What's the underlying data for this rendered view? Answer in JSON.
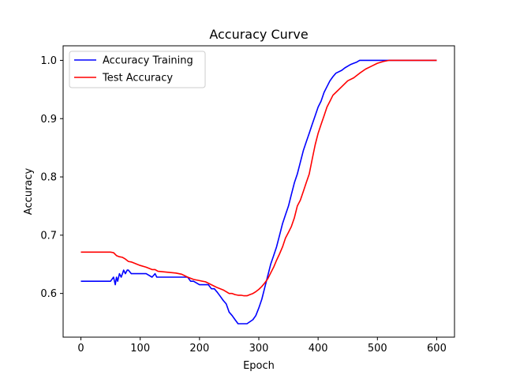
{
  "chart_data": {
    "type": "line",
    "title": "Accuracy Curve",
    "xlabel": "Epoch",
    "ylabel": "Accuracy",
    "xlim": [
      -30,
      630
    ],
    "ylim": [
      0.525,
      1.025
    ],
    "xticks": [
      0,
      100,
      200,
      300,
      400,
      500,
      600
    ],
    "yticks": [
      0.6,
      0.7,
      0.8,
      0.9,
      1.0
    ],
    "ytick_labels": [
      "0.6",
      "0.7",
      "0.8",
      "0.9",
      "1.0"
    ],
    "grid": false,
    "legend_position": "top-left",
    "series": [
      {
        "name": "Accuracy Training",
        "color": "#0000ff",
        "x": [
          0,
          50,
          55,
          58,
          60,
          62,
          65,
          68,
          70,
          72,
          75,
          78,
          80,
          85,
          95,
          100,
          110,
          120,
          125,
          128,
          130,
          140,
          160,
          175,
          180,
          185,
          190,
          200,
          210,
          215,
          220,
          225,
          230,
          235,
          240,
          245,
          250,
          255,
          260,
          265,
          270,
          280,
          290,
          295,
          300,
          305,
          310,
          315,
          320,
          325,
          330,
          335,
          340,
          345,
          350,
          355,
          360,
          365,
          370,
          375,
          380,
          385,
          390,
          395,
          400,
          405,
          410,
          415,
          420,
          425,
          430,
          440,
          445,
          450,
          455,
          460,
          465,
          470,
          480,
          490,
          500,
          510,
          520,
          540,
          560,
          580,
          600
        ],
        "y": [
          0.621,
          0.621,
          0.628,
          0.615,
          0.628,
          0.621,
          0.634,
          0.628,
          0.634,
          0.64,
          0.634,
          0.64,
          0.64,
          0.634,
          0.634,
          0.634,
          0.634,
          0.628,
          0.634,
          0.628,
          0.628,
          0.628,
          0.628,
          0.628,
          0.628,
          0.621,
          0.621,
          0.615,
          0.615,
          0.615,
          0.608,
          0.608,
          0.602,
          0.595,
          0.588,
          0.582,
          0.568,
          0.562,
          0.555,
          0.548,
          0.548,
          0.548,
          0.555,
          0.562,
          0.575,
          0.59,
          0.61,
          0.63,
          0.65,
          0.665,
          0.68,
          0.7,
          0.72,
          0.735,
          0.75,
          0.77,
          0.79,
          0.805,
          0.825,
          0.845,
          0.86,
          0.875,
          0.89,
          0.905,
          0.92,
          0.93,
          0.945,
          0.955,
          0.965,
          0.972,
          0.978,
          0.983,
          0.987,
          0.99,
          0.993,
          0.995,
          0.997,
          1.0,
          1.0,
          1.0,
          1.0,
          1.0,
          1.0,
          1.0,
          1.0,
          1.0,
          1.0
        ]
      },
      {
        "name": "Test Accuracy",
        "color": "#ff0000",
        "x": [
          0,
          50,
          55,
          60,
          65,
          70,
          75,
          80,
          85,
          90,
          95,
          100,
          110,
          120,
          125,
          130,
          140,
          150,
          160,
          170,
          180,
          190,
          200,
          210,
          220,
          230,
          240,
          245,
          250,
          255,
          260,
          265,
          270,
          275,
          280,
          285,
          290,
          295,
          300,
          305,
          310,
          315,
          320,
          325,
          330,
          335,
          340,
          345,
          350,
          355,
          360,
          365,
          370,
          375,
          380,
          385,
          390,
          395,
          400,
          405,
          410,
          415,
          420,
          425,
          430,
          440,
          450,
          460,
          470,
          480,
          490,
          500,
          510,
          520,
          540,
          560,
          580,
          600
        ],
        "y": [
          0.671,
          0.671,
          0.67,
          0.665,
          0.663,
          0.662,
          0.659,
          0.655,
          0.654,
          0.652,
          0.65,
          0.648,
          0.645,
          0.641,
          0.641,
          0.638,
          0.637,
          0.636,
          0.635,
          0.633,
          0.628,
          0.624,
          0.622,
          0.62,
          0.615,
          0.61,
          0.606,
          0.603,
          0.6,
          0.6,
          0.598,
          0.597,
          0.597,
          0.596,
          0.596,
          0.598,
          0.6,
          0.603,
          0.607,
          0.612,
          0.618,
          0.625,
          0.635,
          0.645,
          0.657,
          0.668,
          0.68,
          0.695,
          0.705,
          0.715,
          0.73,
          0.75,
          0.76,
          0.775,
          0.79,
          0.805,
          0.83,
          0.855,
          0.875,
          0.89,
          0.905,
          0.92,
          0.93,
          0.94,
          0.945,
          0.955,
          0.965,
          0.97,
          0.978,
          0.985,
          0.99,
          0.995,
          0.998,
          1.0,
          1.0,
          1.0,
          1.0,
          1.0
        ]
      }
    ]
  }
}
